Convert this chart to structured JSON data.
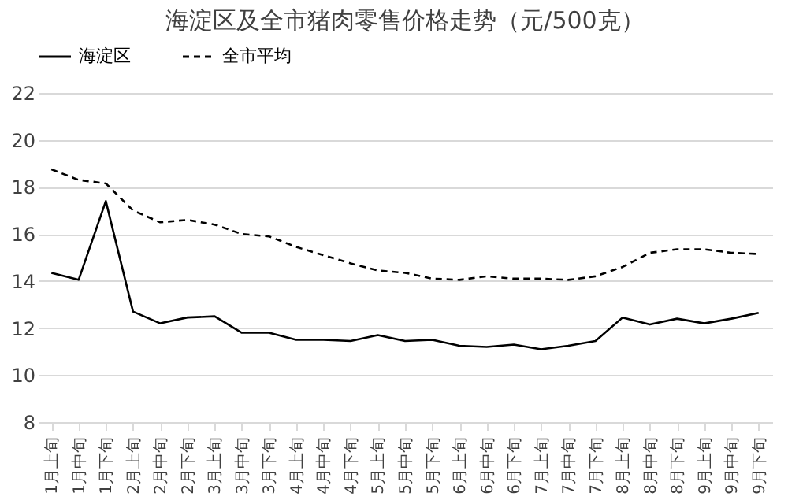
{
  "chart_data": {
    "type": "line",
    "title": "海淀区及全市猪肉零售价格走势（元/500克）",
    "categories": [
      "1月上旬",
      "1月中旬",
      "1月下旬",
      "2月上旬",
      "2月中旬",
      "2月下旬",
      "3月上旬",
      "3月中旬",
      "3月下旬",
      "4月上旬",
      "4月中旬",
      "4月下旬",
      "5月上旬",
      "5月中旬",
      "5月下旬",
      "6月上旬",
      "6月中旬",
      "6月下旬",
      "7月上旬",
      "7月中旬",
      "7月下旬",
      "8月上旬",
      "8月中旬",
      "8月下旬",
      "9月上旬",
      "9月中旬",
      "9月下旬"
    ],
    "series": [
      {
        "name": "海淀区",
        "color": "#000000",
        "line_style": "solid",
        "values": [
          14.35,
          14.05,
          17.4,
          12.7,
          12.2,
          12.45,
          12.5,
          11.8,
          11.8,
          11.5,
          11.5,
          11.45,
          11.7,
          11.45,
          11.5,
          11.25,
          11.2,
          11.3,
          11.1,
          11.25,
          11.45,
          12.45,
          12.15,
          12.4,
          12.2,
          12.4,
          12.65
        ]
      },
      {
        "name": "全市平均",
        "color": "#000000",
        "line_style": "dashed",
        "values": [
          18.75,
          18.3,
          18.15,
          17.0,
          16.5,
          16.6,
          16.4,
          16.0,
          15.9,
          15.45,
          15.1,
          14.75,
          14.45,
          14.35,
          14.1,
          14.05,
          14.2,
          14.1,
          14.1,
          14.05,
          14.2,
          14.6,
          15.2,
          15.35,
          15.35,
          15.2,
          15.15
        ]
      }
    ],
    "ylim": [
      8,
      22
    ],
    "yticks": [
      8,
      10,
      12,
      14,
      16,
      18,
      20,
      22
    ],
    "grid": "y",
    "legend": "top",
    "marker": "none"
  }
}
